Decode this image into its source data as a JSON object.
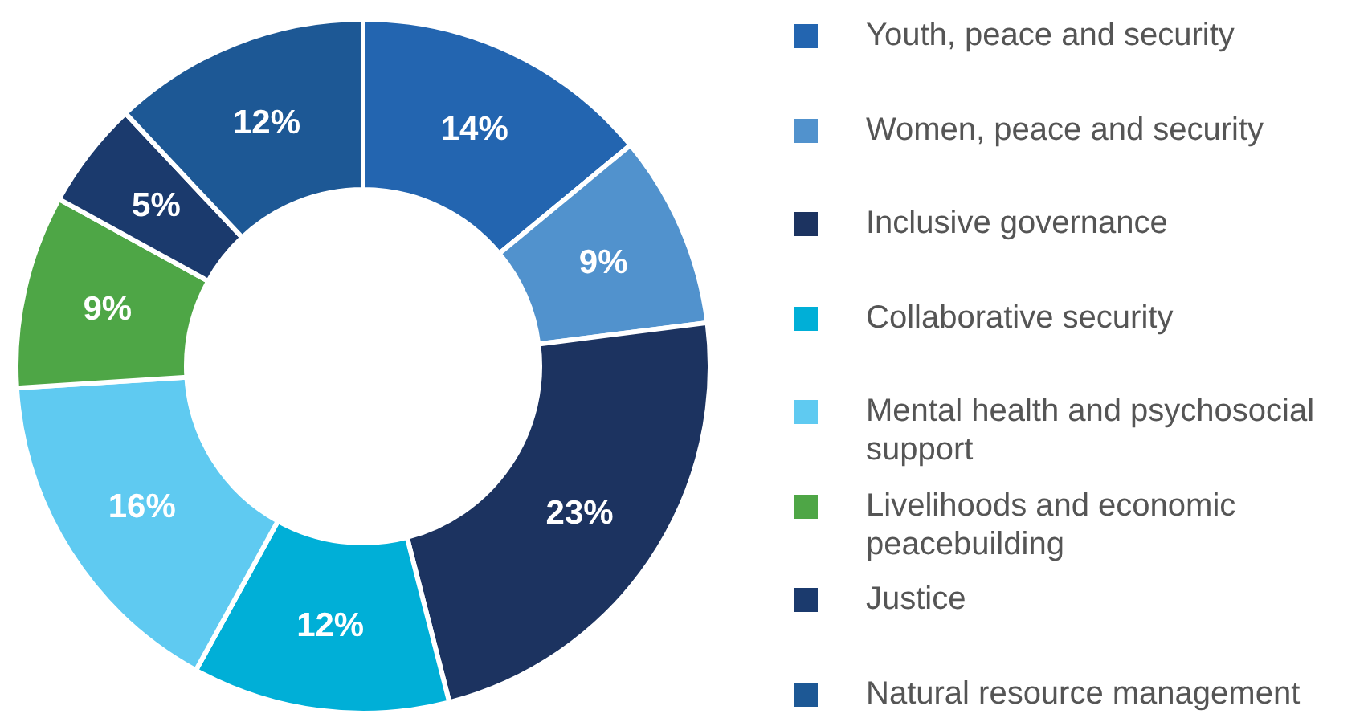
{
  "chart_data": {
    "type": "donut",
    "categories": [
      "Youth, peace and security",
      "Women, peace and security",
      "Inclusive governance",
      "Collaborative security",
      "Mental health and psychosocial support",
      "Livelihoods and economic peacebuilding",
      "Justice",
      "Natural resource management"
    ],
    "values": [
      14,
      9,
      23,
      12,
      16,
      9,
      5,
      12
    ],
    "colors": [
      "#2365b0",
      "#5192cd",
      "#1c3360",
      "#00afd7",
      "#5fcaf1",
      "#4ea646",
      "#1b3a6d",
      "#1d5895"
    ],
    "value_labels": [
      "14%",
      "9%",
      "23%",
      "12%",
      "16%",
      "9%",
      "5%",
      "12%"
    ],
    "legend": "right"
  }
}
